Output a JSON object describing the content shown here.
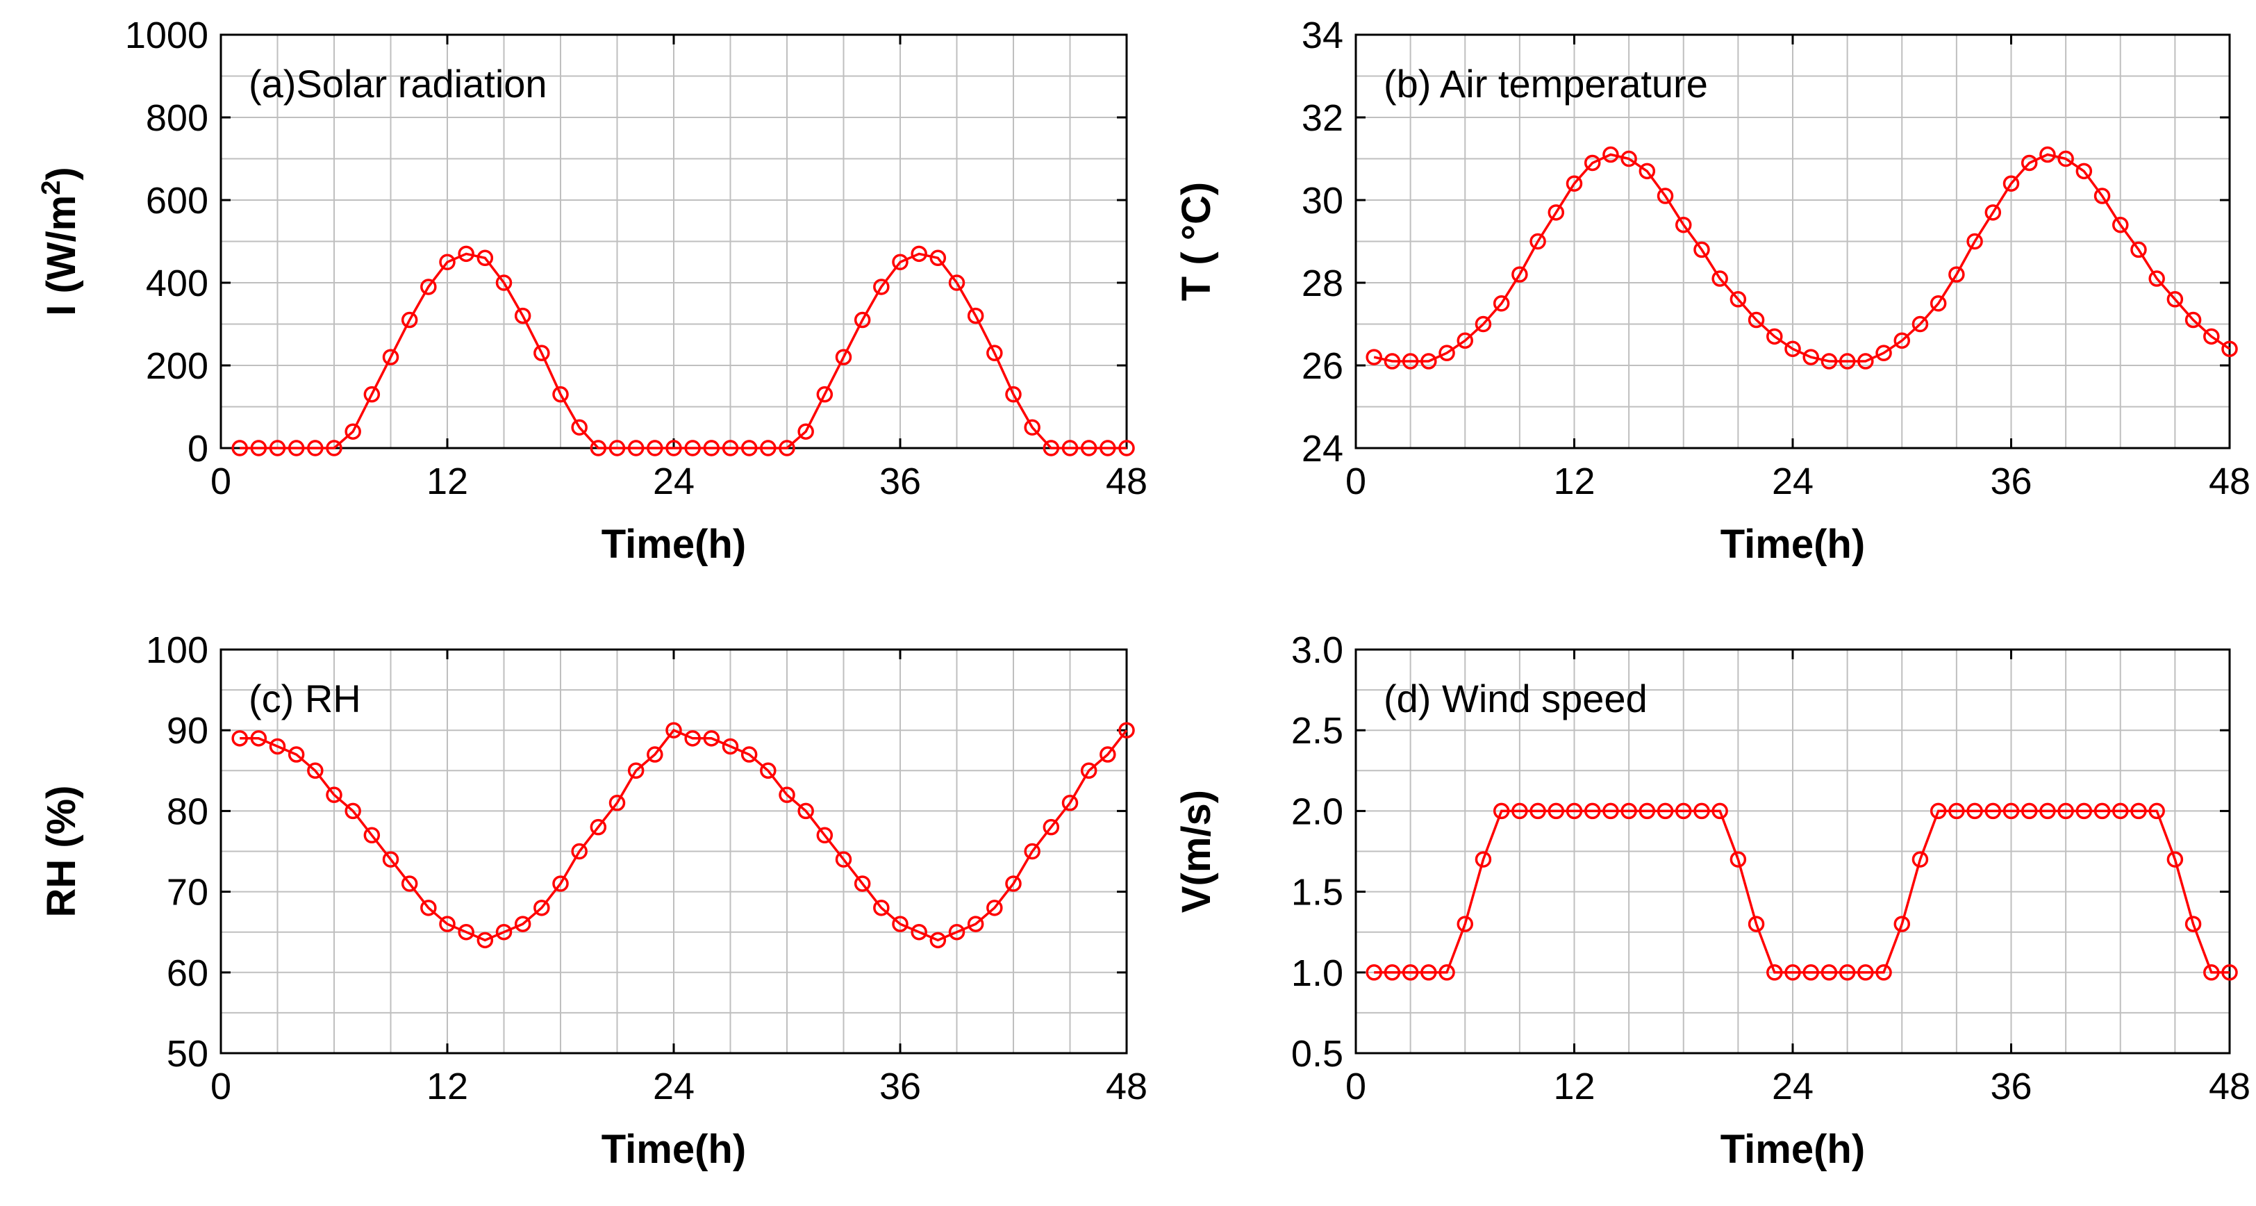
{
  "chart_data": [
    {
      "type": "line",
      "title": "(a)Solar radiation",
      "xlabel": "Time(h)",
      "ylabel": "I (W/m",
      "ylabel_sup": "2",
      "ylabel_end": ")",
      "xlim": [
        0,
        48
      ],
      "ylim": [
        0,
        1000
      ],
      "xticks": [
        0,
        12,
        24,
        36,
        48
      ],
      "xtick_labels": [
        "0",
        "12",
        "24",
        "36",
        "48"
      ],
      "yticks": [
        0,
        200,
        400,
        600,
        800,
        1000
      ],
      "ytick_labels": [
        "0",
        "200",
        "400",
        "600",
        "800",
        "1000"
      ],
      "grid": true,
      "color": "#ff0000",
      "series": [
        {
          "name": "I",
          "x": [
            1,
            2,
            3,
            4,
            5,
            6,
            7,
            8,
            9,
            10,
            11,
            12,
            13,
            14,
            15,
            16,
            17,
            18,
            19,
            20,
            21,
            22,
            23,
            24,
            25,
            26,
            27,
            28,
            29,
            30,
            31,
            32,
            33,
            34,
            35,
            36,
            37,
            38,
            39,
            40,
            41,
            42,
            43,
            44,
            45,
            46,
            47,
            48
          ],
          "values": [
            0,
            0,
            0,
            0,
            0,
            0,
            40,
            130,
            220,
            310,
            390,
            450,
            470,
            460,
            400,
            320,
            230,
            130,
            50,
            0,
            0,
            0,
            0,
            0,
            0,
            0,
            0,
            0,
            0,
            0,
            40,
            130,
            220,
            310,
            390,
            450,
            470,
            460,
            400,
            320,
            230,
            130,
            50,
            0,
            0,
            0,
            0,
            0
          ]
        }
      ]
    },
    {
      "type": "line",
      "title": "(b) Air temperature",
      "xlabel": "Time(h)",
      "ylabel": "T ( °C)",
      "xlim": [
        0,
        48
      ],
      "ylim": [
        24,
        34
      ],
      "xticks": [
        0,
        12,
        24,
        36,
        48
      ],
      "xtick_labels": [
        "0",
        "12",
        "24",
        "36",
        "48"
      ],
      "yticks": [
        24,
        26,
        28,
        30,
        32,
        34
      ],
      "ytick_labels": [
        "24",
        "26",
        "28",
        "30",
        "32",
        "34"
      ],
      "grid": true,
      "color": "#ff0000",
      "series": [
        {
          "name": "T",
          "x": [
            1,
            2,
            3,
            4,
            5,
            6,
            7,
            8,
            9,
            10,
            11,
            12,
            13,
            14,
            15,
            16,
            17,
            18,
            19,
            20,
            21,
            22,
            23,
            24,
            25,
            26,
            27,
            28,
            29,
            30,
            31,
            32,
            33,
            34,
            35,
            36,
            37,
            38,
            39,
            40,
            41,
            42,
            43,
            44,
            45,
            46,
            47,
            48
          ],
          "values": [
            26.2,
            26.1,
            26.1,
            26.1,
            26.3,
            26.6,
            27.0,
            27.5,
            28.2,
            29.0,
            29.7,
            30.4,
            30.9,
            31.1,
            31.0,
            30.7,
            30.1,
            29.4,
            28.8,
            28.1,
            27.6,
            27.1,
            26.7,
            26.4,
            26.2,
            26.1,
            26.1,
            26.1,
            26.3,
            26.6,
            27.0,
            27.5,
            28.2,
            29.0,
            29.7,
            30.4,
            30.9,
            31.1,
            31.0,
            30.7,
            30.1,
            29.4,
            28.8,
            28.1,
            27.6,
            27.1,
            26.7,
            26.4
          ]
        }
      ]
    },
    {
      "type": "line",
      "title": "(c) RH",
      "xlabel": "Time(h)",
      "ylabel": "RH (%)",
      "xlim": [
        0,
        48
      ],
      "ylim": [
        50,
        100
      ],
      "xticks": [
        0,
        12,
        24,
        36,
        48
      ],
      "xtick_labels": [
        "0",
        "12",
        "24",
        "36",
        "48"
      ],
      "yticks": [
        50,
        60,
        70,
        80,
        90,
        100
      ],
      "ytick_labels": [
        "50",
        "60",
        "70",
        "80",
        "90",
        "100"
      ],
      "grid": true,
      "color": "#ff0000",
      "series": [
        {
          "name": "RH",
          "x": [
            1,
            2,
            3,
            4,
            5,
            6,
            7,
            8,
            9,
            10,
            11,
            12,
            13,
            14,
            15,
            16,
            17,
            18,
            19,
            20,
            21,
            22,
            23,
            24,
            25,
            26,
            27,
            28,
            29,
            30,
            31,
            32,
            33,
            34,
            35,
            36,
            37,
            38,
            39,
            40,
            41,
            42,
            43,
            44,
            45,
            46,
            47,
            48
          ],
          "values": [
            89,
            89,
            88,
            87,
            85,
            82,
            80,
            77,
            74,
            71,
            68,
            66,
            65,
            64,
            65,
            66,
            68,
            71,
            75,
            78,
            81,
            85,
            87,
            90,
            89,
            89,
            88,
            87,
            85,
            82,
            80,
            77,
            74,
            71,
            68,
            66,
            65,
            64,
            65,
            66,
            68,
            71,
            75,
            78,
            81,
            85,
            87,
            90
          ]
        }
      ]
    },
    {
      "type": "line",
      "title": "(d) Wind speed",
      "xlabel": "Time(h)",
      "ylabel": "V(m/s)",
      "xlim": [
        0,
        48
      ],
      "ylim": [
        0.5,
        3.0
      ],
      "xticks": [
        0,
        12,
        24,
        36,
        48
      ],
      "xtick_labels": [
        "0",
        "12",
        "24",
        "36",
        "48"
      ],
      "yticks": [
        0.5,
        1.0,
        1.5,
        2.0,
        2.5,
        3.0
      ],
      "ytick_labels": [
        "0.5",
        "1.0",
        "1.5",
        "2.0",
        "2.5",
        "3.0"
      ],
      "grid": true,
      "color": "#ff0000",
      "series": [
        {
          "name": "V",
          "x": [
            1,
            2,
            3,
            4,
            5,
            6,
            7,
            8,
            9,
            10,
            11,
            12,
            13,
            14,
            15,
            16,
            17,
            18,
            19,
            20,
            21,
            22,
            23,
            24,
            25,
            26,
            27,
            28,
            29,
            30,
            31,
            32,
            33,
            34,
            35,
            36,
            37,
            38,
            39,
            40,
            41,
            42,
            43,
            44,
            45,
            46,
            47,
            48
          ],
          "values": [
            1.0,
            1.0,
            1.0,
            1.0,
            1.0,
            1.3,
            1.7,
            2.0,
            2.0,
            2.0,
            2.0,
            2.0,
            2.0,
            2.0,
            2.0,
            2.0,
            2.0,
            2.0,
            2.0,
            2.0,
            1.7,
            1.3,
            1.0,
            1.0,
            1.0,
            1.0,
            1.0,
            1.0,
            1.0,
            1.3,
            1.7,
            2.0,
            2.0,
            2.0,
            2.0,
            2.0,
            2.0,
            2.0,
            2.0,
            2.0,
            2.0,
            2.0,
            2.0,
            2.0,
            1.7,
            1.3,
            1.0,
            1.0
          ]
        }
      ]
    }
  ]
}
